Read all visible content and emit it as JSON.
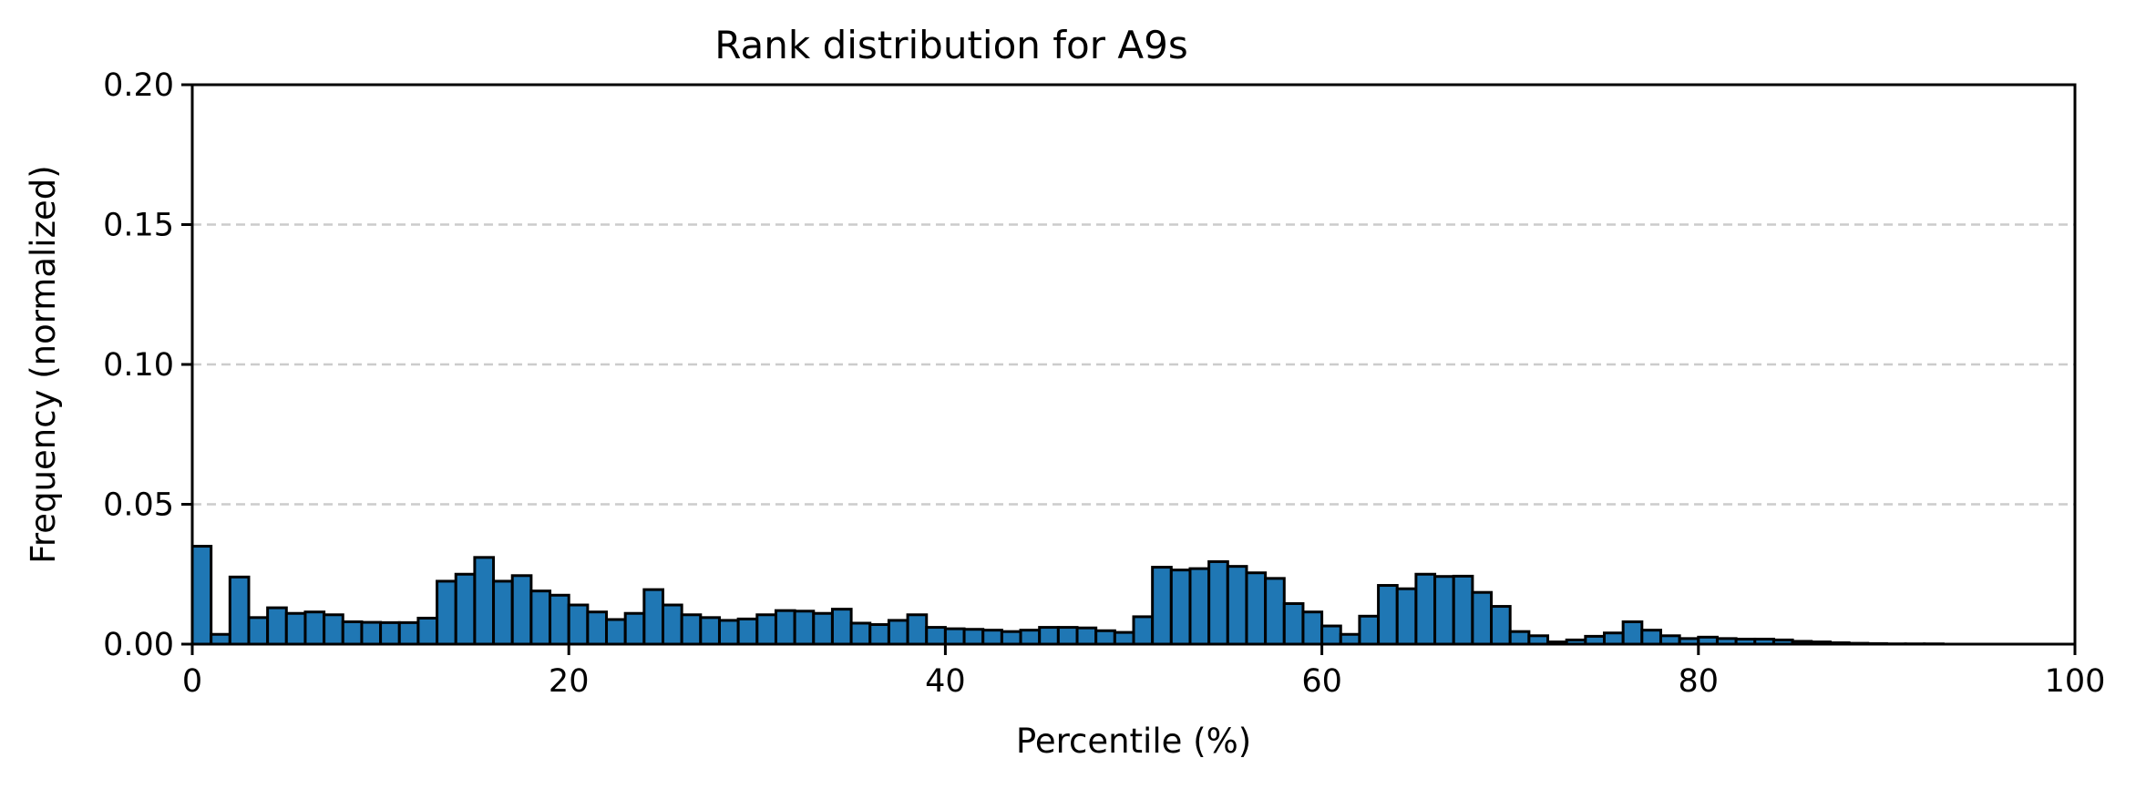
{
  "chart_data": {
    "type": "bar",
    "title": "Rank distribution for A9s",
    "xlabel": "Percentile (%)",
    "ylabel": "Frequency (normalized)",
    "xlim": [
      0,
      100
    ],
    "ylim": [
      0,
      0.2
    ],
    "xticks": [
      "0",
      "20",
      "40",
      "60",
      "80",
      "100"
    ],
    "yticks": [
      "0.00",
      "0.05",
      "0.10",
      "0.15",
      "0.20"
    ],
    "grid": "y-dashed",
    "bar_color": "#1f77b4",
    "bin_width": 1,
    "bin_starts": [
      0,
      1,
      2,
      3,
      4,
      5,
      6,
      7,
      8,
      9,
      10,
      11,
      12,
      13,
      14,
      15,
      16,
      17,
      18,
      19,
      20,
      21,
      22,
      23,
      24,
      25,
      26,
      27,
      28,
      29,
      30,
      31,
      32,
      33,
      34,
      35,
      36,
      37,
      38,
      39,
      40,
      41,
      42,
      43,
      44,
      45,
      46,
      47,
      48,
      49,
      50,
      51,
      52,
      53,
      54,
      55,
      56,
      57,
      58,
      59,
      60,
      61,
      62,
      63,
      64,
      65,
      66,
      67,
      68,
      69,
      70,
      71,
      72,
      73,
      74,
      75,
      76,
      77,
      78,
      79,
      80,
      81,
      82,
      83,
      84,
      85,
      86,
      87,
      88,
      89,
      90,
      91,
      92,
      93,
      94,
      95,
      96,
      97,
      98,
      99
    ],
    "values": [
      0.035,
      0.0035,
      0.024,
      0.0095,
      0.013,
      0.011,
      0.0115,
      0.0105,
      0.008,
      0.0078,
      0.0077,
      0.0077,
      0.0093,
      0.0225,
      0.025,
      0.031,
      0.0225,
      0.0245,
      0.019,
      0.0175,
      0.014,
      0.0115,
      0.0088,
      0.011,
      0.0195,
      0.014,
      0.0105,
      0.0095,
      0.0085,
      0.009,
      0.0105,
      0.012,
      0.0118,
      0.011,
      0.0125,
      0.0075,
      0.007,
      0.0085,
      0.0105,
      0.006,
      0.0055,
      0.0053,
      0.005,
      0.0045,
      0.005,
      0.006,
      0.006,
      0.0058,
      0.0048,
      0.0042,
      0.0098,
      0.0275,
      0.0265,
      0.027,
      0.0295,
      0.0278,
      0.0255,
      0.0235,
      0.0145,
      0.0115,
      0.0065,
      0.0035,
      0.01,
      0.021,
      0.0198,
      0.025,
      0.0242,
      0.0243,
      0.0185,
      0.0135,
      0.0045,
      0.003,
      0.0008,
      0.0015,
      0.0028,
      0.004,
      0.008,
      0.005,
      0.003,
      0.002,
      0.0025,
      0.002,
      0.0018,
      0.0018,
      0.0015,
      0.001,
      0.0008,
      0.0005,
      0.0003,
      0.0002,
      0.0001,
      0.0001,
      0.0001,
      0,
      0,
      0,
      0,
      0,
      0,
      0
    ]
  }
}
